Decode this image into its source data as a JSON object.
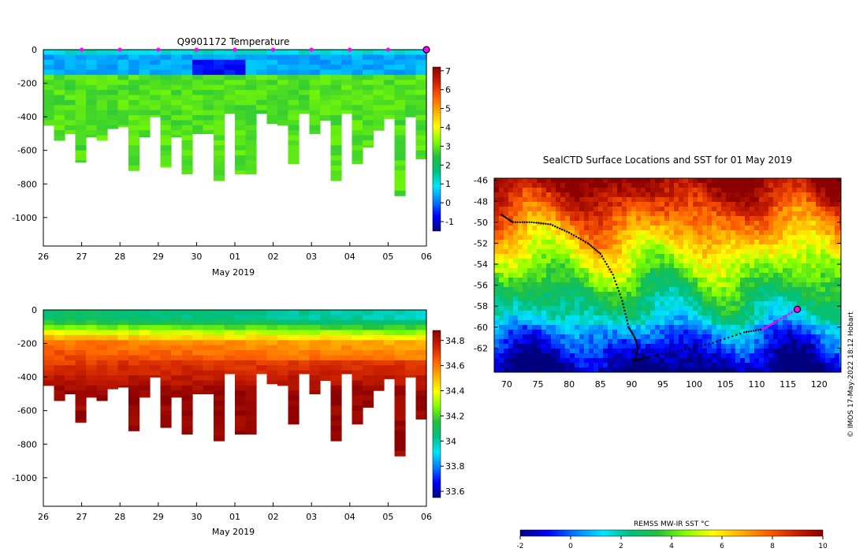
{
  "credit": "© IMOS 17-May-2022 18:12 Hobart",
  "colors": {
    "jet": [
      "#00007f",
      "#0000ff",
      "#007fff",
      "#00e5ff",
      "#00c07f",
      "#22c040",
      "#7fff00",
      "#ffff00",
      "#ffb000",
      "#ff6000",
      "#cc2000",
      "#8b0000"
    ],
    "marker": "#ff00ff",
    "track": "#000000"
  },
  "chart_data": [
    {
      "type": "heatmap",
      "title": "Q9901172  Temperature",
      "xlabel": "May 2019",
      "x_ticks": [
        "26",
        "27",
        "28",
        "29",
        "30",
        "01",
        "02",
        "03",
        "04",
        "05",
        "06"
      ],
      "y_ticks": [
        "0",
        "-200",
        "-400",
        "-600",
        "-800",
        "-1000"
      ],
      "ylim": [
        -1170,
        0
      ],
      "colorbar": {
        "ticks": [
          "7",
          "6",
          "5",
          "4",
          "3",
          "2",
          "1",
          "0",
          "-1"
        ],
        "range": [
          -1.5,
          7.2
        ]
      },
      "profile_max_depth_m": [
        450,
        540,
        500,
        670,
        520,
        540,
        470,
        460,
        720,
        520,
        400,
        700,
        520,
        740,
        500,
        500,
        780,
        380,
        740,
        740,
        380,
        440,
        450,
        680,
        380,
        500,
        420,
        780,
        380,
        680,
        580,
        480,
        410,
        870,
        400,
        650
      ],
      "cast_markers": [
        "27",
        "28",
        "29",
        "30",
        "01",
        "02",
        "03",
        "04",
        "05",
        "06"
      ]
    },
    {
      "type": "heatmap",
      "title": "",
      "xlabel": "May 2019",
      "x_ticks": [
        "26",
        "27",
        "28",
        "29",
        "30",
        "01",
        "02",
        "03",
        "04",
        "05",
        "06"
      ],
      "y_ticks": [
        "0",
        "-200",
        "-400",
        "-600",
        "-800",
        "-1000"
      ],
      "ylim": [
        -1170,
        0
      ],
      "colorbar": {
        "ticks": [
          "34.8",
          "34.6",
          "34.4",
          "34.2",
          "34",
          "33.8",
          "33.6"
        ],
        "range": [
          33.55,
          34.88
        ]
      },
      "profile_max_depth_m": [
        450,
        540,
        500,
        670,
        520,
        540,
        470,
        460,
        720,
        520,
        400,
        700,
        520,
        740,
        500,
        500,
        780,
        380,
        740,
        740,
        380,
        440,
        450,
        680,
        380,
        500,
        420,
        780,
        380,
        680,
        580,
        480,
        410,
        870,
        400,
        650
      ]
    },
    {
      "type": "heatmap",
      "title": "SealCTD Surface Locations and SST for 01 May 2019",
      "x_ticks": [
        "70",
        "75",
        "80",
        "85",
        "90",
        "95",
        "100",
        "105",
        "110",
        "115",
        "120"
      ],
      "y_ticks": [
        "-46",
        "-48",
        "-50",
        "-52",
        "-54",
        "-56",
        "-58",
        "-60",
        "-62"
      ],
      "xlim": [
        68,
        123.5
      ],
      "ylim": [
        -64.3,
        -45.8
      ],
      "colorbar": {
        "label": "REMSS MW-IR SST °C",
        "ticks": [
          "-2",
          "0",
          "2",
          "4",
          "6",
          "8",
          "10"
        ],
        "range": [
          -2,
          10
        ]
      },
      "track": [
        [
          69.2,
          -49.3
        ],
        [
          71,
          -50
        ],
        [
          74,
          -50
        ],
        [
          77,
          -50.2
        ],
        [
          80,
          -51
        ],
        [
          83,
          -52
        ],
        [
          85,
          -53
        ],
        [
          87,
          -55
        ],
        [
          88.5,
          -57.5
        ],
        [
          89.5,
          -60
        ],
        [
          90.5,
          -61
        ],
        [
          91,
          -62
        ],
        [
          90.5,
          -63.2
        ],
        [
          93,
          -62.8
        ],
        [
          98,
          -62.2
        ],
        [
          103,
          -61.5
        ],
        [
          108,
          -60.5
        ],
        [
          111,
          -60.2
        ]
      ],
      "highlight_track": [
        [
          111,
          -60.2
        ],
        [
          113,
          -59.5
        ],
        [
          116.5,
          -58.3
        ]
      ],
      "current_position": [
        116.5,
        -58.3
      ]
    }
  ]
}
